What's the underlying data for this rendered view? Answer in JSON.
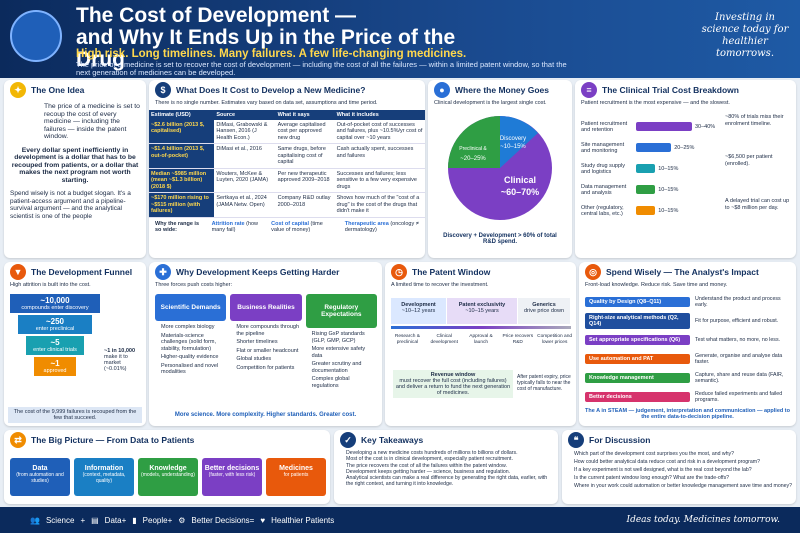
{
  "header": {
    "title1": "The Cost of Development —",
    "title2": "and Why It Ends Up in the Price of the Drug",
    "subtitle": "High risk. Long timelines. Many failures. A few life-changing medicines.",
    "desc": "The price of a medicine is set to recover the cost of development — including the cost of all the failures — within a limited patent window, so that the next generation of medicines can be developed.",
    "tagline": "Investing in science today for healthier tomorrows."
  },
  "idea": {
    "title": "The One Idea",
    "p1": "The price of a medicine is set to recoup the cost of every medicine — including the failures — inside the patent window.",
    "p2": "Every dollar spent inefficiently in development is a dollar that has to be recouped from patients, or a dollar that makes the next program not worth starting.",
    "p3": "Spend wisely is not a budget slogan. It's a patient-access argument and a pipeline-survival argument — and the analytical scientist is one of the people"
  },
  "cost": {
    "title": "What Does It Cost to Develop a New Medicine?",
    "sub": "There is no single number. Estimates vary based on data set, assumptions and time period.",
    "headers": [
      "Estimate (USD)",
      "Source",
      "What it says",
      "What it includes"
    ],
    "rows": [
      [
        "~$2.6 billion (2013 $, capitalised)",
        "DiMasi, Grabowski & Hansen, 2016 (J Health Econ.)",
        "Average capitalised cost per approved new drug",
        "Out-of-pocket cost of successes and failures, plus ~10.5%/yr cost of capital over ~10 years"
      ],
      [
        "~$1.4 billion (2013 $, out-of-pocket)",
        "DiMasi et al., 2016",
        "Same drugs, before capitalising cost of capital",
        "Cash actually spent, successes and failures"
      ],
      [
        "Median ~$985 million (mean ~$1.3 billion) (2018 $)",
        "Wouters, McKee & Luyten, 2020 (JAMA)",
        "Per new therapeutic approved 2009–2018",
        "Successes and failures; less sensitive to a few very expensive drugs"
      ],
      [
        "~$170 million rising to ~$515 million (with failures)",
        "Sertkaya et al., 2024 (JAMA Netw. Open)",
        "Company R&D outlay 2000–2018",
        "Shows how much of the \"cost of a drug\" is the cost of the drugs that didn't make it"
      ]
    ],
    "why": "Why the range is so wide:",
    "f1": "Attrition rate",
    "f1s": "(how many fail)",
    "f2": "Cost of capital",
    "f2s": "(time value of money)",
    "f3": "Therapeutic area",
    "f3s": "(oncology ≠ dermatology)"
  },
  "money": {
    "title": "Where the Money Goes",
    "sub": "Clinical development is the largest single cost.",
    "disc": "Discovery",
    "disc_v": "~10–15%",
    "pre": "Preclinical & Pharmaceutical Development",
    "pre_v": "~20–25%",
    "clin": "Clinical",
    "clin_v": "~60–70%",
    "total": "Discovery + Development > 60% of total R&D spend.",
    "pct": [
      12,
      23,
      65
    ]
  },
  "trial": {
    "title": "The Clinical Trial Cost Breakdown",
    "sub": "Patient recruitment is the most expensive — and the slowest.",
    "items": [
      {
        "label": "Patient recruitment and retention",
        "v": "30–40%",
        "w": 35,
        "c": "#7b3fc4"
      },
      {
        "label": "Site management and monitoring",
        "v": "20–25%",
        "w": 22,
        "c": "#2a6fd6"
      },
      {
        "label": "Study drug supply and logistics",
        "v": "10–15%",
        "w": 12,
        "c": "#19a0b0"
      },
      {
        "label": "Data management and analysis",
        "v": "10–15%",
        "w": 12,
        "c": "#2f9e44"
      },
      {
        "label": "Other (regulatory, central labs, etc.)",
        "v": "10–15%",
        "w": 12,
        "c": "#f08c00"
      }
    ],
    "s1": "~80% of trials miss their enrolment timeline.",
    "s2": "~$6,500 per patient (enrolled).",
    "s3": "A delayed trial can cost up to ~$8 million per day."
  },
  "funnel": {
    "title": "The Development Funnel",
    "sub": "High attrition is built into the cost.",
    "l1": "~10,000",
    "l1s": "compounds enter discovery",
    "l2": "~250",
    "l2s": "enter preclinical",
    "l3": "~5",
    "l3s": "enter clinical trials",
    "l4": "~1",
    "l4s": "approved",
    "side": "~1 in 10,000",
    "sides": "make it to market (~0.01%)",
    "foot": "The cost of the 9,999 failures is recouped from the few that succeed."
  },
  "harder": {
    "title": "Why Development Keeps Getting Harder",
    "sub": "Three forces push costs higher:",
    "cols": [
      {
        "t": "Scientific Demands",
        "c": "#2a6fd6",
        "items": [
          "More complex biology",
          "Materials-science challenges (solid form, stability, formulation)",
          "Higher-quality evidence",
          "Personalised and novel modalities"
        ]
      },
      {
        "t": "Business Realities",
        "c": "#7b3fc4",
        "items": [
          "More compounds through the pipeline",
          "Shorter timelines",
          "Flat or smaller headcount",
          "Global studies",
          "Competition for patients"
        ]
      },
      {
        "t": "Regulatory Expectations",
        "c": "#2f9e44",
        "items": [
          "Rising GxP standards (GLP, GMP, GCP)",
          "More extensive safety data",
          "Greater scrutiny and documentation",
          "Complex global regulations"
        ]
      }
    ],
    "foot": "More science. More complexity. Higher standards. Greater cost."
  },
  "patent": {
    "title": "The Patent Window",
    "sub": "A limited time to recover the investment.",
    "dev": "Development",
    "devv": "~10–12 years",
    "excl": "Patent exclusivity",
    "exclv": "~10–15 years",
    "gen": "Generics",
    "genv": "drive price down",
    "steps": [
      "Research & preclinical",
      "Clinical development",
      "Approval & launch",
      "Price recovers R&D",
      "Competition and lower prices"
    ],
    "rev": "Revenue window",
    "revs": "must recover the full cost (including failures) and deliver a return to fund the next generation of medicines.",
    "after": "After patent expiry, price typically falls to near the cost of manufacture."
  },
  "wisely": {
    "title": "Spend Wisely — The Analyst's Impact",
    "sub": "Front-load knowledge. Reduce risk. Save time and money.",
    "items": [
      {
        "t": "Quality by Design (Q8–Q11)",
        "d": "Understand the product and process early.",
        "c": "#2a6fd6"
      },
      {
        "t": "Right-size analytical methods (Q2, Q14)",
        "d": "Fit for purpose, efficient and robust.",
        "c": "#1f4e9e"
      },
      {
        "t": "Set appropriate specifications (Q6)",
        "d": "Test what matters, no more, no less.",
        "c": "#7b3fc4"
      },
      {
        "t": "Use automation and PAT",
        "d": "Generate, organise and analyse data faster.",
        "c": "#e8590c"
      },
      {
        "t": "Knowledge management",
        "d": "Capture, share and reuse data (FAIR, semantic).",
        "c": "#2f9e44"
      },
      {
        "t": "Better decisions",
        "d": "Reduce failed experiments and failed programs.",
        "c": "#d6336c"
      }
    ],
    "foot": "The A in STEAM — judgement, interpretation and communication — applied to the entire data-to-decision pipeline."
  },
  "big": {
    "title": "The Big Picture — From Data to Patients",
    "steps": [
      {
        "t": "Data",
        "s": "(from automation and studies)",
        "c": "#1f5fb8"
      },
      {
        "t": "Information",
        "s": "(context, metadata, quality)",
        "c": "#1a7fc4"
      },
      {
        "t": "Knowledge",
        "s": "(models, understanding)",
        "c": "#2f9e44"
      },
      {
        "t": "Better decisions",
        "s": "(faster, with less risk)",
        "c": "#7b3fc4"
      },
      {
        "t": "Medicines",
        "s": "for patients",
        "c": "#e8590c"
      }
    ]
  },
  "take": {
    "title": "Key Takeaways",
    "items": [
      "Developing a new medicine costs hundreds of millions to billions of dollars.",
      "Most of the cost is in clinical development, especially patient recruitment.",
      "The price recovers the cost of all the failures within the patent window.",
      "Development keeps getting harder — science, business and regulation.",
      "Analytical scientists can make a real difference by generating the right data, earlier, with the right context, and turning it into knowledge."
    ]
  },
  "disc": {
    "title": "For Discussion",
    "items": [
      "Which part of the development cost surprises you the most, and why?",
      "How could better analytical data reduce cost and risk in a development program?",
      "If a key experiment is not well designed, what is the real cost beyond the lab?",
      "Is the current patent window long enough? What are the trade-offs?",
      "Where in your work could automation or better knowledge management save time and money?"
    ]
  },
  "footer": {
    "a": "Science",
    "b": "Data",
    "c": "People",
    "d": "Better Decisions",
    "e": "Healthier Patients",
    "tag": "Ideas today. Medicines tomorrow."
  }
}
